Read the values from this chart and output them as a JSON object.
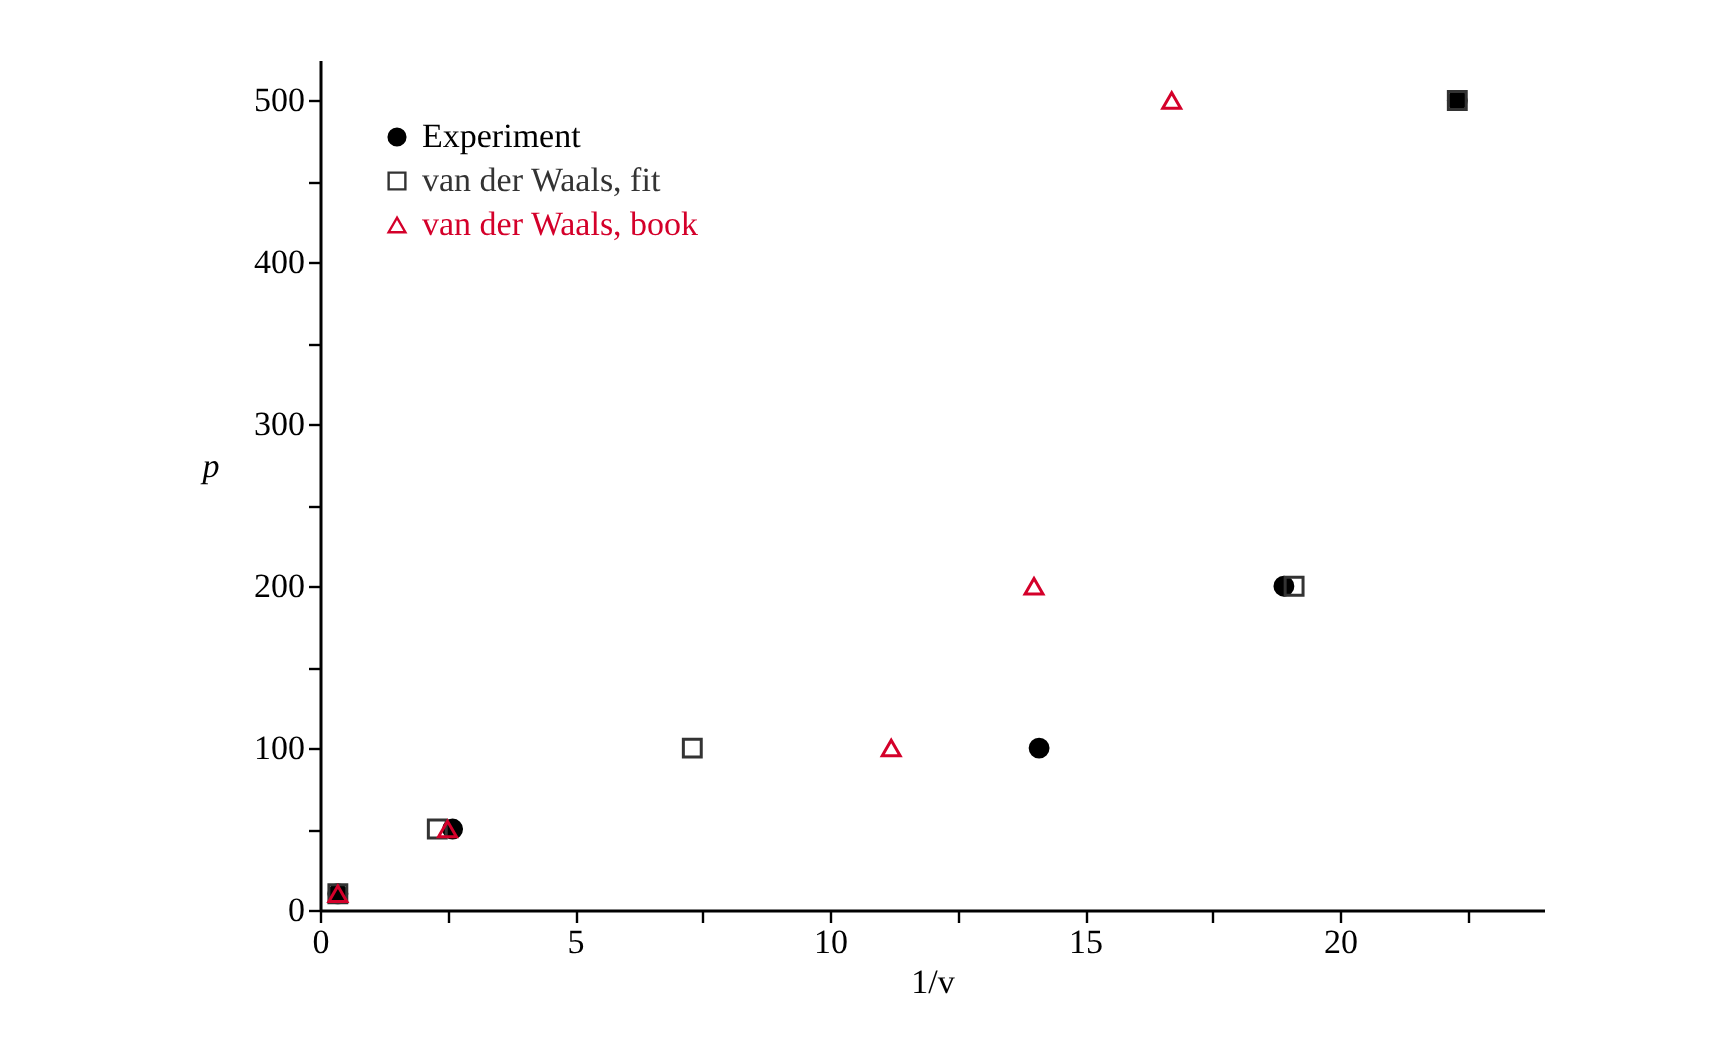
{
  "chart_data": {
    "type": "scatter",
    "xlabel": "1/v",
    "ylabel": "p",
    "series": [
      {
        "name": "Experiment",
        "color": "#000000",
        "marker": "circle",
        "x": [
          0.35,
          2.6,
          14.1,
          18.9,
          22.3
        ],
        "values": [
          10,
          50,
          100,
          200,
          500
        ]
      },
      {
        "name": "van der Waals, fit",
        "color": "#333333",
        "marker": "square",
        "x": [
          0.35,
          2.3,
          7.3,
          19.1,
          22.3
        ],
        "values": [
          10,
          50,
          100,
          200,
          500
        ]
      },
      {
        "name": "van der Waals, book",
        "color": "#d4002a",
        "marker": "triangle",
        "x": [
          0.35,
          2.5,
          11.2,
          14.0,
          16.7
        ],
        "values": [
          10,
          50,
          100,
          200,
          500
        ]
      }
    ],
    "xlim": [
      0,
      24
    ],
    "ylim": [
      0,
      525
    ],
    "xticks": [
      0,
      {
        "value": 2.5,
        "label": null
      },
      5,
      {
        "value": 7.5,
        "label": null
      },
      10,
      {
        "value": 12.5,
        "label": null
      },
      15,
      {
        "value": 17.5,
        "label": null
      },
      20,
      {
        "value": 22.5,
        "label": null
      }
    ],
    "yticks": [
      0,
      {
        "value": 50,
        "label": null
      },
      100,
      {
        "value": 150,
        "label": null
      },
      200,
      {
        "value": 250,
        "label": null
      },
      300,
      {
        "value": 350,
        "label": null
      },
      400,
      {
        "value": 450,
        "label": null
      },
      500
    ],
    "grid": false,
    "legend": "top left"
  }
}
